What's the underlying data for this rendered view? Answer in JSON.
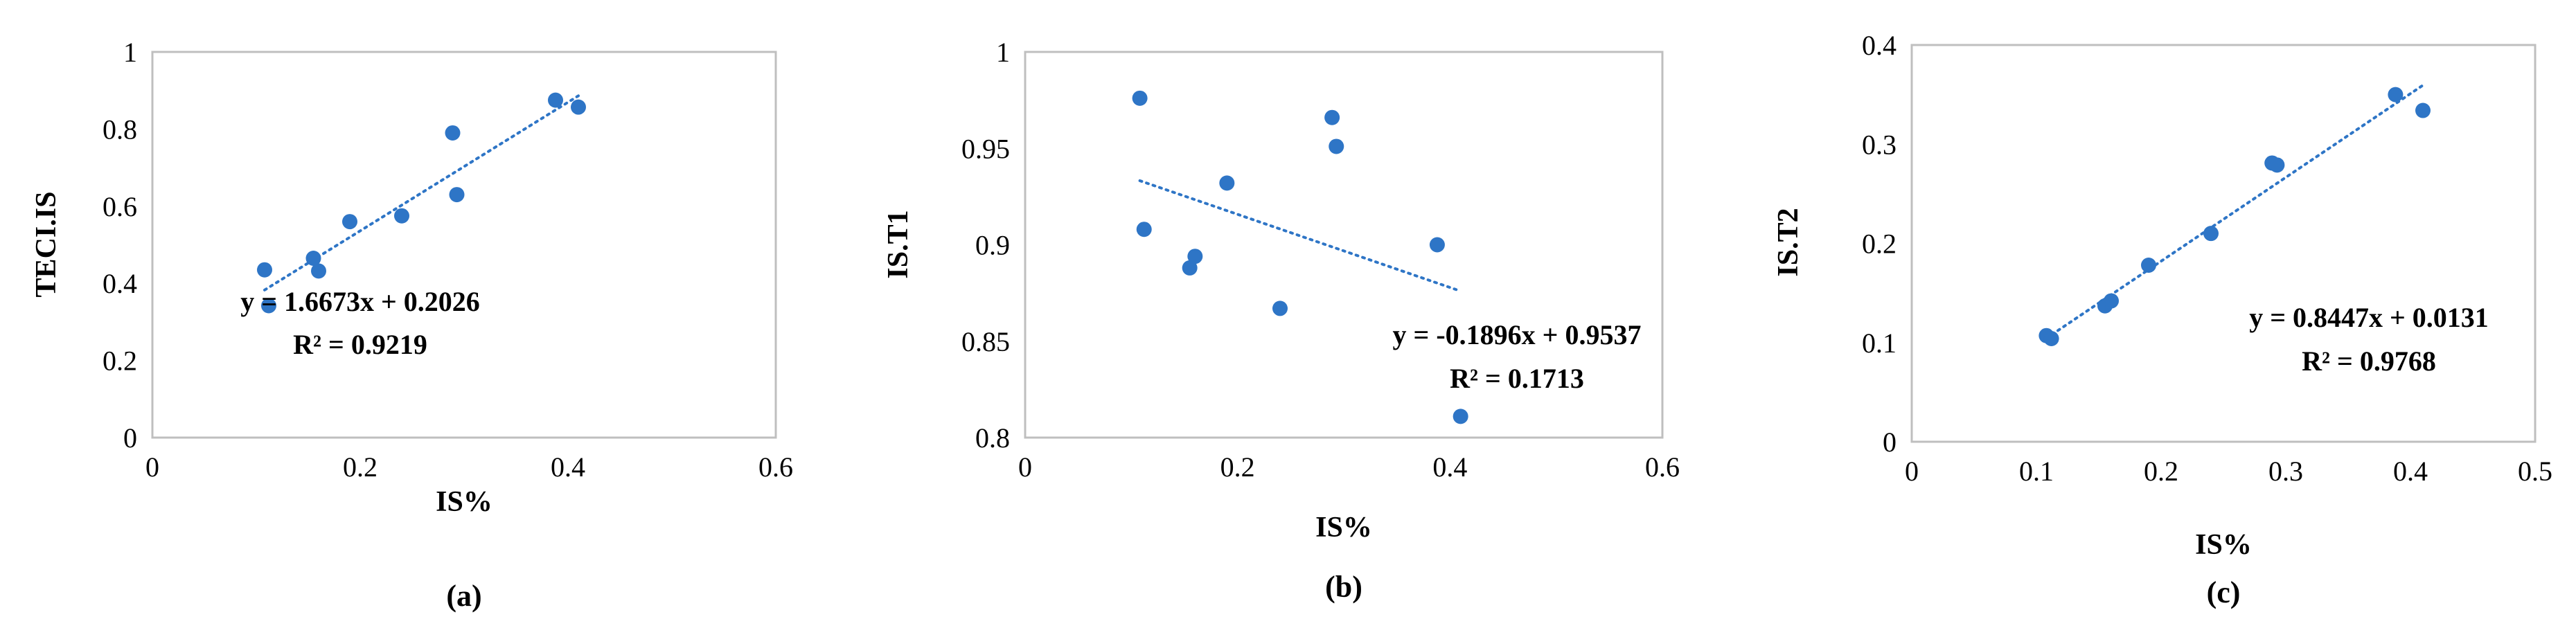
{
  "marker_color": "#2E75C6",
  "chart_data": [
    {
      "type": "scatter",
      "panel_label": "(a)",
      "xlabel": "IS%",
      "ylabel": "TECI.IS",
      "xlim": [
        0,
        0.6
      ],
      "ylim": [
        0,
        1
      ],
      "xticks": [
        "0",
        "0.2",
        "0.4",
        "0.6"
      ],
      "yticks": [
        "0",
        "0.2",
        "0.4",
        "0.6",
        "0.8",
        "1"
      ],
      "points": [
        {
          "x": 0.108,
          "y": 0.435
        },
        {
          "x": 0.112,
          "y": 0.342
        },
        {
          "x": 0.155,
          "y": 0.465
        },
        {
          "x": 0.16,
          "y": 0.432
        },
        {
          "x": 0.19,
          "y": 0.56
        },
        {
          "x": 0.24,
          "y": 0.575
        },
        {
          "x": 0.289,
          "y": 0.79
        },
        {
          "x": 0.293,
          "y": 0.63
        },
        {
          "x": 0.388,
          "y": 0.875
        },
        {
          "x": 0.41,
          "y": 0.857
        }
      ],
      "trendline": {
        "type": "linear",
        "slope": 1.6673,
        "intercept": 0.2026,
        "x_range": [
          0.108,
          0.41
        ]
      },
      "equation": "y = 1.6673x + 0.2026",
      "r2": "R² = 0.9219"
    },
    {
      "type": "scatter",
      "panel_label": "(b)",
      "xlabel": "IS%",
      "ylabel": "IS.T1",
      "xlim": [
        0,
        0.6
      ],
      "ylim": [
        0.8,
        1
      ],
      "xticks": [
        "0",
        "0.2",
        "0.4",
        "0.6"
      ],
      "yticks": [
        "0.8",
        "0.85",
        "0.9",
        "0.95",
        "1"
      ],
      "points": [
        {
          "x": 0.108,
          "y": 0.976
        },
        {
          "x": 0.112,
          "y": 0.908
        },
        {
          "x": 0.155,
          "y": 0.888
        },
        {
          "x": 0.16,
          "y": 0.894
        },
        {
          "x": 0.19,
          "y": 0.932
        },
        {
          "x": 0.24,
          "y": 0.867
        },
        {
          "x": 0.289,
          "y": 0.966
        },
        {
          "x": 0.293,
          "y": 0.951
        },
        {
          "x": 0.388,
          "y": 0.9
        },
        {
          "x": 0.41,
          "y": 0.811
        }
      ],
      "trendline": {
        "type": "linear",
        "slope": -0.1896,
        "intercept": 0.9537,
        "x_range": [
          0.108,
          0.41
        ]
      },
      "equation": "y = -0.1896x + 0.9537",
      "r2": "R² = 0.1713"
    },
    {
      "type": "scatter",
      "panel_label": "(c)",
      "xlabel": "IS%",
      "ylabel": "IS.T2",
      "xlim": [
        0,
        0.5
      ],
      "ylim": [
        0,
        0.4
      ],
      "xticks": [
        "0",
        "0.1",
        "0.2",
        "0.3",
        "0.4",
        "0.5"
      ],
      "yticks": [
        "0",
        "0.1",
        "0.2",
        "0.3",
        "0.4"
      ],
      "points": [
        {
          "x": 0.108,
          "y": 0.107
        },
        {
          "x": 0.112,
          "y": 0.104
        },
        {
          "x": 0.155,
          "y": 0.137
        },
        {
          "x": 0.16,
          "y": 0.142
        },
        {
          "x": 0.19,
          "y": 0.178
        },
        {
          "x": 0.24,
          "y": 0.21
        },
        {
          "x": 0.289,
          "y": 0.281
        },
        {
          "x": 0.293,
          "y": 0.279
        },
        {
          "x": 0.388,
          "y": 0.35
        },
        {
          "x": 0.41,
          "y": 0.334
        }
      ],
      "trendline": {
        "type": "linear",
        "slope": 0.8447,
        "intercept": 0.0131,
        "x_range": [
          0.108,
          0.41
        ]
      },
      "equation": "y = 0.8447x + 0.0131",
      "r2": "R² = 0.9768"
    }
  ]
}
